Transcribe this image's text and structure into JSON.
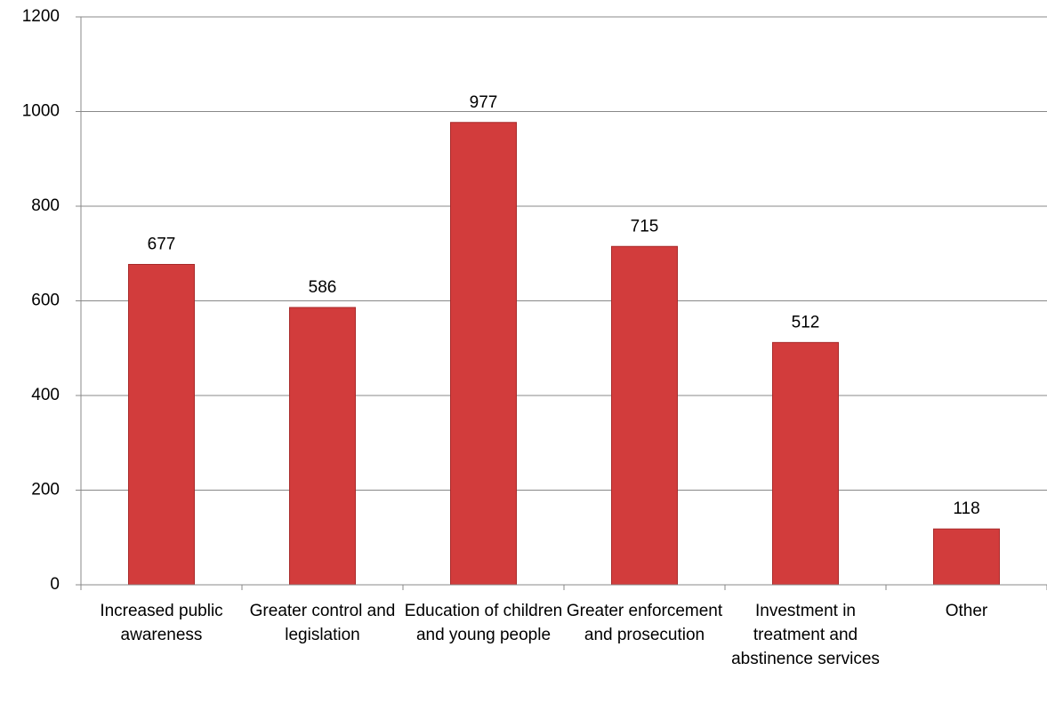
{
  "chart_data": {
    "type": "bar",
    "categories": [
      "Increased public awareness",
      "Greater control and legislation",
      "Education of children and young people",
      "Greater enforcement and prosecution",
      "Investment in treatment and abstinence services",
      "Other"
    ],
    "values": [
      677,
      586,
      977,
      715,
      512,
      118
    ],
    "color": "#d23c3c",
    "ylim": [
      0,
      1200
    ],
    "yticks": [
      0,
      200,
      400,
      600,
      800,
      1000,
      1200
    ],
    "grid": true
  }
}
